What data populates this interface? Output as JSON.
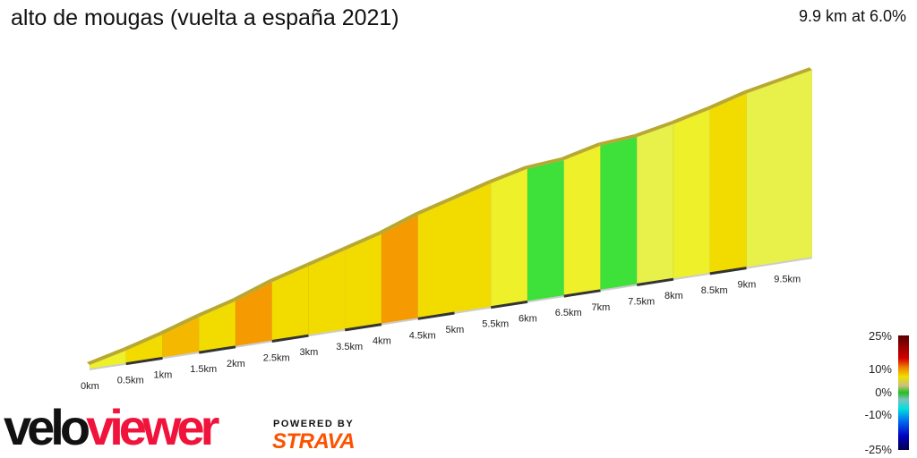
{
  "title": "alto de mougas (vuelta a españa 2021)",
  "summary": "9.9 km at 6.0%",
  "chart_data": {
    "type": "area",
    "title": "alto de mougas (vuelta a españa 2021)",
    "total_km": 9.9,
    "avg_grade_pct": 6.0,
    "x_ticks": [
      "0km",
      "0.5km",
      "1km",
      "1.5km",
      "2km",
      "2.5km",
      "3km",
      "3.5km",
      "4km",
      "4.5km",
      "5km",
      "5.5km",
      "6km",
      "6.5km",
      "7km",
      "7.5km",
      "8km",
      "8.5km",
      "9km",
      "9.5km"
    ],
    "segments": [
      {
        "from_km": 0,
        "to_km": 0.5,
        "grade_pct": 6
      },
      {
        "from_km": 0.5,
        "to_km": 1,
        "grade_pct": 7
      },
      {
        "from_km": 1,
        "to_km": 1.5,
        "grade_pct": 8
      },
      {
        "from_km": 1.5,
        "to_km": 2,
        "grade_pct": 7
      },
      {
        "from_km": 2,
        "to_km": 2.5,
        "grade_pct": 9
      },
      {
        "from_km": 2.5,
        "to_km": 3,
        "grade_pct": 7
      },
      {
        "from_km": 3,
        "to_km": 3.5,
        "grade_pct": 7
      },
      {
        "from_km": 3.5,
        "to_km": 4,
        "grade_pct": 7
      },
      {
        "from_km": 4,
        "to_km": 4.5,
        "grade_pct": 9
      },
      {
        "from_km": 4.5,
        "to_km": 5.5,
        "grade_pct": 7
      },
      {
        "from_km": 5.5,
        "to_km": 6,
        "grade_pct": 6
      },
      {
        "from_km": 6,
        "to_km": 6.5,
        "grade_pct": 2
      },
      {
        "from_km": 6.5,
        "to_km": 7,
        "grade_pct": 6
      },
      {
        "from_km": 7,
        "to_km": 7.5,
        "grade_pct": 2
      },
      {
        "from_km": 7.5,
        "to_km": 8,
        "grade_pct": 5
      },
      {
        "from_km": 8,
        "to_km": 8.5,
        "grade_pct": 6
      },
      {
        "from_km": 8.5,
        "to_km": 9,
        "grade_pct": 7
      },
      {
        "from_km": 9,
        "to_km": 9.9,
        "grade_pct": 5
      }
    ],
    "legend": {
      "labels": [
        "25%",
        "10%",
        "0%",
        "-10%",
        "-25%"
      ],
      "placement": "bottom-right"
    }
  },
  "branding": {
    "logo_a": "velo",
    "logo_b": "viewer",
    "powered": "POWERED BY",
    "strava": "STRAVA"
  }
}
